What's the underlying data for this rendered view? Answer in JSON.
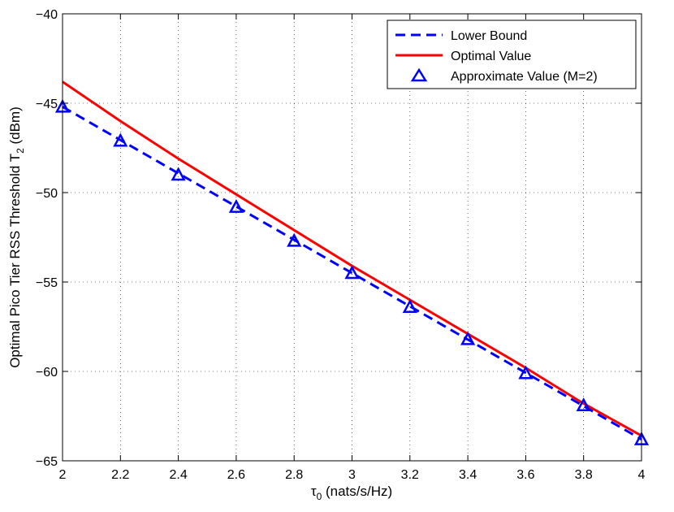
{
  "chart_data": {
    "type": "line",
    "xlabel": {
      "main": "τ",
      "sub": "0",
      "rest": " (nats/s/Hz)"
    },
    "ylabel": {
      "main": "Optimal Pico Tier RSS Threshold T",
      "sub": "2",
      "rest": " (dBm)"
    },
    "xlim": [
      2,
      4
    ],
    "ylim": [
      -65,
      -40
    ],
    "xticks": [
      2,
      2.2,
      2.4,
      2.6,
      2.8,
      3,
      3.2,
      3.4,
      3.6,
      3.8,
      4
    ],
    "xtick_labels": [
      "2",
      "2.2",
      "2.4",
      "2.6",
      "2.8",
      "3",
      "3.2",
      "3.4",
      "3.6",
      "3.8",
      "4"
    ],
    "yticks": [
      -65,
      -60,
      -55,
      -50,
      -45,
      -40
    ],
    "ytick_labels": [
      "−65",
      "−60",
      "−55",
      "−50",
      "−45",
      "−40"
    ],
    "grid": true,
    "legend_position": "top-right",
    "series": [
      {
        "name": "Lower Bound",
        "style": "dashed-line",
        "color": "#0000ff",
        "x": [
          2,
          4
        ],
        "y": [
          -45.2,
          -63.8
        ]
      },
      {
        "name": "Optimal Value",
        "style": "solid-line",
        "color": "#ff0000",
        "x": [
          2,
          2.2,
          2.4,
          2.6,
          2.8,
          3,
          3.2,
          3.4,
          3.6,
          3.8,
          4
        ],
        "y": [
          -43.8,
          -46.0,
          -48.1,
          -50.1,
          -52.1,
          -54.1,
          -56.0,
          -57.9,
          -59.8,
          -61.8,
          -63.6
        ]
      },
      {
        "name": "Approximate Value (M=2)",
        "style": "triangle-markers",
        "color": "#0000ff",
        "x": [
          2,
          2.2,
          2.4,
          2.6,
          2.8,
          3,
          3.2,
          3.4,
          3.6,
          3.8,
          4
        ],
        "y": [
          -45.2,
          -47.1,
          -49.0,
          -50.8,
          -52.7,
          -54.5,
          -56.4,
          -58.2,
          -60.1,
          -61.9,
          -63.8
        ]
      }
    ]
  }
}
